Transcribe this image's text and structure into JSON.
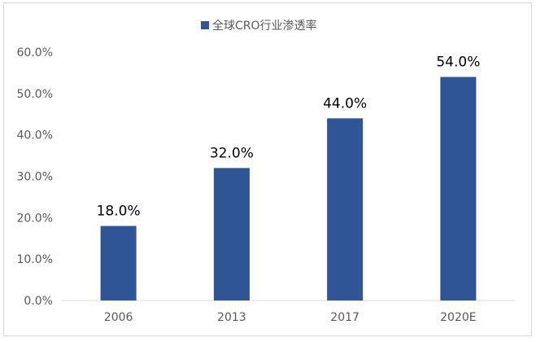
{
  "chart_data": {
    "type": "bar",
    "categories": [
      "2006",
      "2013",
      "2017",
      "2020E"
    ],
    "series": [
      {
        "name": "全球CRO行业渗透率",
        "values": [
          18.0,
          32.0,
          44.0,
          54.0
        ],
        "color": "#2F5597"
      }
    ],
    "data_labels": [
      "18.0%",
      "32.0%",
      "44.0%",
      "54.0%"
    ],
    "yticks": [
      "0.0%",
      "10.0%",
      "20.0%",
      "30.0%",
      "40.0%",
      "50.0%",
      "60.0%"
    ],
    "ylim": [
      0,
      60
    ],
    "grid": false,
    "legend": "top-center"
  }
}
